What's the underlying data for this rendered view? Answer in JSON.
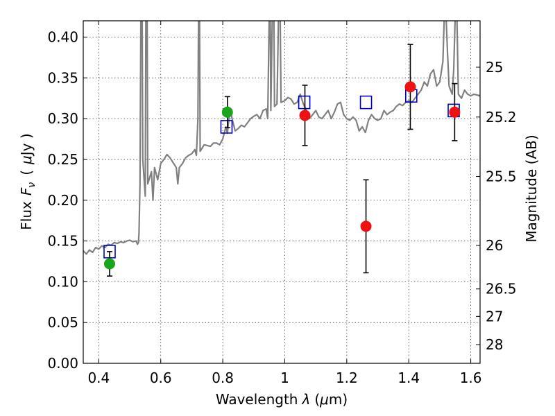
{
  "chart_data": {
    "type": "scatter",
    "xlabel_main": "Wavelength",
    "xlabel_symbol": "λ",
    "xlabel_unit_open": "(",
    "xlabel_unit_mu": "μ",
    "xlabel_unit_rest": "m)",
    "ylabel_main": "Flux",
    "ylabel_symbol": "F",
    "ylabel_sub": "ν",
    "ylabel_open": "(",
    "ylabel_mu": "μ",
    "ylabel_unit": "Jy )",
    "ylabel_right": "Magnitude (AB)",
    "xlim": [
      0.35,
      1.63
    ],
    "ylim": [
      0.0,
      0.42
    ],
    "grid": true,
    "x_ticks": [
      {
        "value": 0.4,
        "label": "0.4"
      },
      {
        "value": 0.6,
        "label": "0.6"
      },
      {
        "value": 0.8,
        "label": "0.8"
      },
      {
        "value": 1.0,
        "label": "1"
      },
      {
        "value": 1.2,
        "label": "1.2"
      },
      {
        "value": 1.4,
        "label": "1.4"
      },
      {
        "value": 1.6,
        "label": "1.6"
      }
    ],
    "y_ticks": [
      {
        "value": 0.0,
        "label": "0.00"
      },
      {
        "value": 0.05,
        "label": "0.05"
      },
      {
        "value": 0.1,
        "label": "0.10"
      },
      {
        "value": 0.15,
        "label": "0.15"
      },
      {
        "value": 0.2,
        "label": "0.20"
      },
      {
        "value": 0.25,
        "label": "0.25"
      },
      {
        "value": 0.3,
        "label": "0.30"
      },
      {
        "value": 0.35,
        "label": "0.35"
      },
      {
        "value": 0.4,
        "label": "0.40"
      }
    ],
    "mag_ticks": [
      {
        "mag": 25,
        "label": "25"
      },
      {
        "mag": 25.2,
        "label": "25.2"
      },
      {
        "mag": 25.5,
        "label": "25.5"
      },
      {
        "mag": 26,
        "label": "26"
      },
      {
        "mag": 26.5,
        "label": "26.5"
      },
      {
        "mag": 27,
        "label": "27"
      },
      {
        "mag": 28,
        "label": "28"
      }
    ],
    "sed_model": {
      "color": "#808080",
      "points": [
        [
          0.35,
          0.138
        ],
        [
          0.36,
          0.134
        ],
        [
          0.37,
          0.139
        ],
        [
          0.38,
          0.136
        ],
        [
          0.39,
          0.142
        ],
        [
          0.4,
          0.14
        ],
        [
          0.41,
          0.144
        ],
        [
          0.42,
          0.142
        ],
        [
          0.43,
          0.146
        ],
        [
          0.44,
          0.145
        ],
        [
          0.45,
          0.148
        ],
        [
          0.46,
          0.147
        ],
        [
          0.47,
          0.149
        ],
        [
          0.48,
          0.148
        ],
        [
          0.49,
          0.15
        ],
        [
          0.5,
          0.151
        ],
        [
          0.51,
          0.149
        ],
        [
          0.52,
          0.15
        ],
        [
          0.525,
          0.146
        ],
        [
          0.528,
          0.148
        ],
        [
          0.53,
          0.16
        ],
        [
          0.533,
          0.22
        ],
        [
          0.536,
          0.43
        ],
        [
          0.54,
          0.43
        ],
        [
          0.542,
          0.25
        ],
        [
          0.55,
          0.205
        ],
        [
          0.552,
          0.43
        ],
        [
          0.556,
          0.43
        ],
        [
          0.558,
          0.22
        ],
        [
          0.57,
          0.235
        ],
        [
          0.575,
          0.2
        ],
        [
          0.58,
          0.24
        ],
        [
          0.59,
          0.225
        ],
        [
          0.6,
          0.245
        ],
        [
          0.61,
          0.25
        ],
        [
          0.62,
          0.256
        ],
        [
          0.63,
          0.252
        ],
        [
          0.64,
          0.246
        ],
        [
          0.65,
          0.24
        ],
        [
          0.655,
          0.22
        ],
        [
          0.66,
          0.24
        ],
        [
          0.67,
          0.245
        ],
        [
          0.68,
          0.252
        ],
        [
          0.69,
          0.255
        ],
        [
          0.7,
          0.257
        ],
        [
          0.71,
          0.262
        ],
        [
          0.715,
          0.255
        ],
        [
          0.72,
          0.3
        ],
        [
          0.722,
          0.43
        ],
        [
          0.725,
          0.43
        ],
        [
          0.727,
          0.26
        ],
        [
          0.74,
          0.268
        ],
        [
          0.76,
          0.266
        ],
        [
          0.77,
          0.27
        ],
        [
          0.78,
          0.27
        ],
        [
          0.79,
          0.268
        ],
        [
          0.8,
          0.275
        ],
        [
          0.81,
          0.29
        ],
        [
          0.815,
          0.282
        ],
        [
          0.82,
          0.3
        ],
        [
          0.825,
          0.31
        ],
        [
          0.83,
          0.3
        ],
        [
          0.84,
          0.285
        ],
        [
          0.85,
          0.288
        ],
        [
          0.86,
          0.292
        ],
        [
          0.87,
          0.29
        ],
        [
          0.88,
          0.295
        ],
        [
          0.89,
          0.3
        ],
        [
          0.9,
          0.303
        ],
        [
          0.91,
          0.305
        ],
        [
          0.92,
          0.3
        ],
        [
          0.93,
          0.31
        ],
        [
          0.94,
          0.312
        ],
        [
          0.945,
          0.3
        ],
        [
          0.95,
          0.43
        ],
        [
          0.953,
          0.43
        ],
        [
          0.955,
          0.31
        ],
        [
          0.96,
          0.43
        ],
        [
          0.965,
          0.43
        ],
        [
          0.967,
          0.315
        ],
        [
          0.975,
          0.318
        ],
        [
          0.98,
          0.43
        ],
        [
          0.985,
          0.43
        ],
        [
          0.988,
          0.32
        ],
        [
          1.0,
          0.322
        ],
        [
          1.01,
          0.326
        ],
        [
          1.02,
          0.324
        ],
        [
          1.03,
          0.318
        ],
        [
          1.04,
          0.32
        ],
        [
          1.05,
          0.33
        ],
        [
          1.06,
          0.318
        ],
        [
          1.07,
          0.31
        ],
        [
          1.08,
          0.3
        ],
        [
          1.09,
          0.305
        ],
        [
          1.1,
          0.31
        ],
        [
          1.11,
          0.302
        ],
        [
          1.12,
          0.3
        ],
        [
          1.13,
          0.305
        ],
        [
          1.14,
          0.31
        ],
        [
          1.15,
          0.3
        ],
        [
          1.16,
          0.308
        ],
        [
          1.17,
          0.318
        ],
        [
          1.18,
          0.32
        ],
        [
          1.19,
          0.305
        ],
        [
          1.2,
          0.3
        ],
        [
          1.21,
          0.298
        ],
        [
          1.22,
          0.302
        ],
        [
          1.23,
          0.298
        ],
        [
          1.24,
          0.285
        ],
        [
          1.25,
          0.29
        ],
        [
          1.26,
          0.283
        ],
        [
          1.27,
          0.298
        ],
        [
          1.28,
          0.305
        ],
        [
          1.29,
          0.3
        ],
        [
          1.3,
          0.298
        ],
        [
          1.31,
          0.3
        ],
        [
          1.32,
          0.31
        ],
        [
          1.33,
          0.305
        ],
        [
          1.34,
          0.308
        ],
        [
          1.35,
          0.31
        ],
        [
          1.36,
          0.315
        ],
        [
          1.37,
          0.318
        ],
        [
          1.38,
          0.316
        ],
        [
          1.39,
          0.32
        ],
        [
          1.4,
          0.322
        ],
        [
          1.41,
          0.32
        ],
        [
          1.42,
          0.325
        ],
        [
          1.43,
          0.33
        ],
        [
          1.44,
          0.335
        ],
        [
          1.45,
          0.345
        ],
        [
          1.46,
          0.34
        ],
        [
          1.47,
          0.355
        ],
        [
          1.48,
          0.36
        ],
        [
          1.49,
          0.34
        ],
        [
          1.5,
          0.345
        ],
        [
          1.51,
          0.37
        ],
        [
          1.515,
          0.43
        ],
        [
          1.52,
          0.43
        ],
        [
          1.525,
          0.38
        ],
        [
          1.53,
          0.34
        ],
        [
          1.54,
          0.33
        ],
        [
          1.545,
          0.36
        ],
        [
          1.55,
          0.43
        ],
        [
          1.555,
          0.43
        ],
        [
          1.56,
          0.33
        ],
        [
          1.57,
          0.325
        ],
        [
          1.58,
          0.335
        ],
        [
          1.59,
          0.33
        ],
        [
          1.6,
          0.328
        ],
        [
          1.61,
          0.33
        ],
        [
          1.62,
          0.329
        ],
        [
          1.63,
          0.328
        ]
      ]
    },
    "model_squares": {
      "color": "#0000cc",
      "points": [
        [
          0.435,
          0.137
        ],
        [
          0.812,
          0.29
        ],
        [
          1.063,
          0.32
        ],
        [
          1.262,
          0.32
        ],
        [
          1.408,
          0.328
        ],
        [
          1.545,
          0.31
        ]
      ]
    },
    "green_points": {
      "color": "#1aa51a",
      "points": [
        {
          "x": 0.435,
          "y": 0.122,
          "err": 0.015
        },
        {
          "x": 0.815,
          "y": 0.308,
          "err": 0.019
        }
      ]
    },
    "red_points": {
      "color": "#ee1111",
      "points": [
        {
          "x": 1.065,
          "y": 0.304,
          "err": 0.037
        },
        {
          "x": 1.262,
          "y": 0.168,
          "err": 0.057
        },
        {
          "x": 1.405,
          "y": 0.339,
          "err": 0.052
        },
        {
          "x": 1.548,
          "y": 0.308,
          "err": 0.035
        }
      ]
    }
  }
}
